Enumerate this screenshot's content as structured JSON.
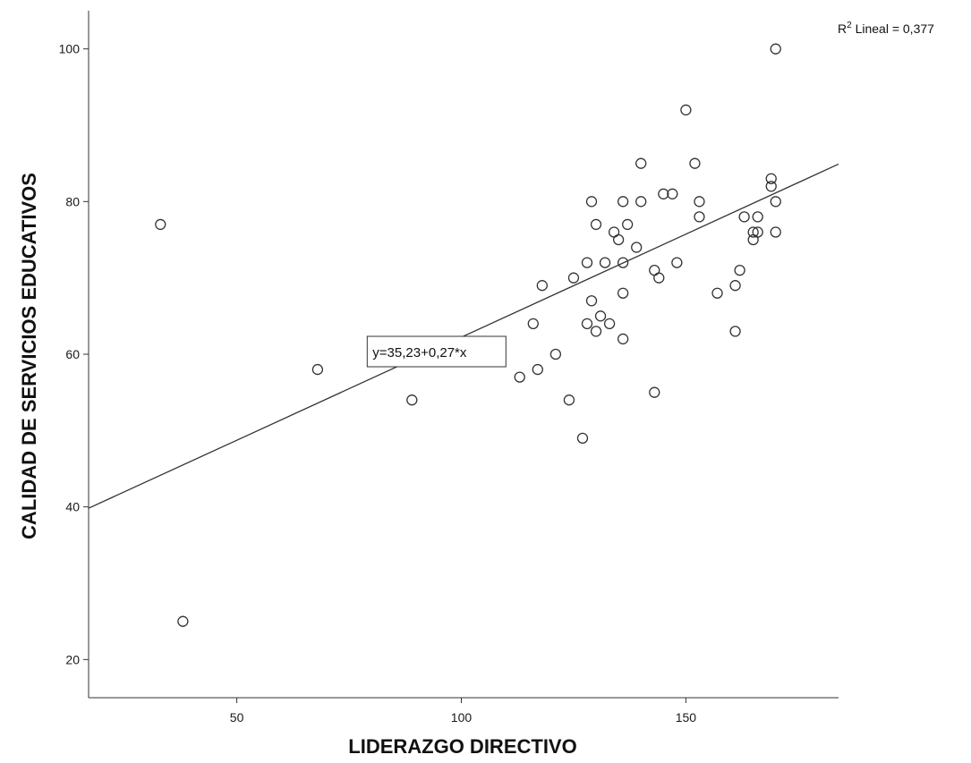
{
  "chart_data": {
    "type": "scatter",
    "xlabel": "LIDERAZGO DIRECTIVO",
    "ylabel": "CALIDAD DE SERVICIOS EDUCATIVOS",
    "xlim": [
      17,
      184
    ],
    "ylim": [
      15,
      105
    ],
    "x_ticks": [
      50,
      100,
      150
    ],
    "y_ticks": [
      20,
      40,
      60,
      80,
      100
    ],
    "grid": false,
    "fit_line": {
      "intercept": 35.23,
      "slope": 0.27,
      "label": "y=35,23+0,27*x"
    },
    "r2_label": {
      "prefix": "R",
      "sup": "2",
      "text": " Lineal = 0,377"
    },
    "marker": "open-circle",
    "points": [
      [
        33,
        77
      ],
      [
        38,
        25
      ],
      [
        68,
        58
      ],
      [
        89,
        54
      ],
      [
        113,
        57
      ],
      [
        116,
        64
      ],
      [
        117,
        58
      ],
      [
        118,
        69
      ],
      [
        121,
        60
      ],
      [
        124,
        54
      ],
      [
        125,
        70
      ],
      [
        127,
        49
      ],
      [
        128,
        72
      ],
      [
        128,
        64
      ],
      [
        129,
        80
      ],
      [
        129,
        67
      ],
      [
        130,
        77
      ],
      [
        130,
        63
      ],
      [
        131,
        65
      ],
      [
        132,
        72
      ],
      [
        133,
        64
      ],
      [
        134,
        76
      ],
      [
        135,
        75
      ],
      [
        136,
        80
      ],
      [
        136,
        72
      ],
      [
        136,
        68
      ],
      [
        136,
        62
      ],
      [
        137,
        77
      ],
      [
        139,
        74
      ],
      [
        140,
        85
      ],
      [
        140,
        80
      ],
      [
        143,
        71
      ],
      [
        143,
        55
      ],
      [
        144,
        70
      ],
      [
        145,
        81
      ],
      [
        147,
        81
      ],
      [
        148,
        72
      ],
      [
        150,
        92
      ],
      [
        152,
        85
      ],
      [
        153,
        80
      ],
      [
        153,
        78
      ],
      [
        157,
        68
      ],
      [
        161,
        69
      ],
      [
        161,
        63
      ],
      [
        162,
        71
      ],
      [
        163,
        78
      ],
      [
        165,
        76
      ],
      [
        165,
        75
      ],
      [
        166,
        78
      ],
      [
        166,
        76
      ],
      [
        169,
        83
      ],
      [
        169,
        82
      ],
      [
        170,
        100
      ],
      [
        170,
        80
      ],
      [
        170,
        76
      ]
    ]
  }
}
